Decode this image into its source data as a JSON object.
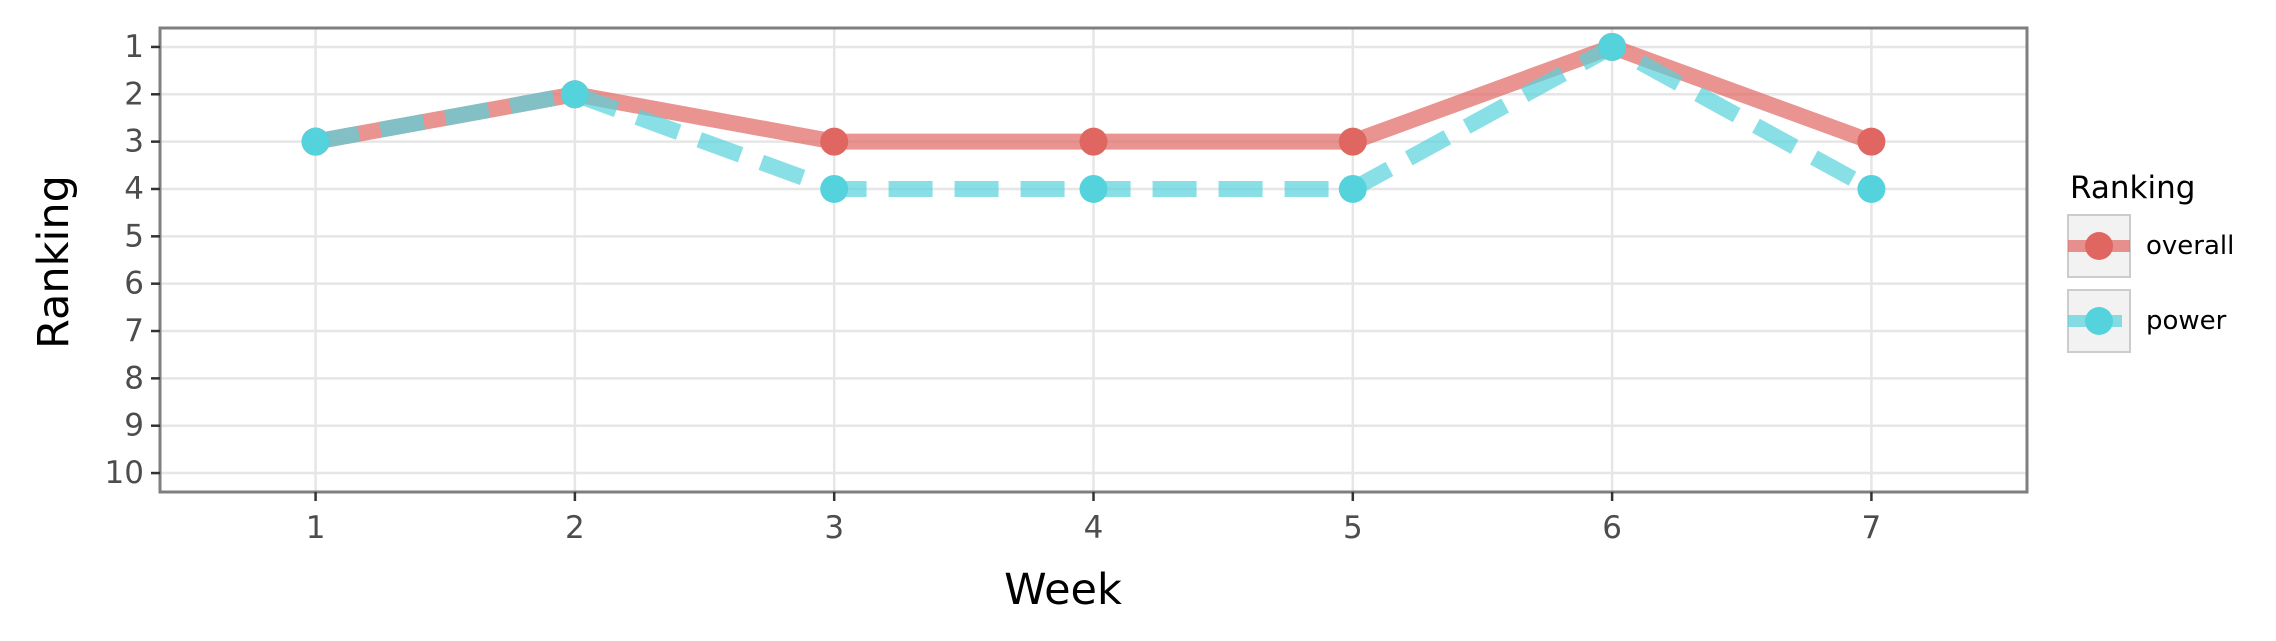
{
  "chart_data": {
    "type": "line",
    "title": "",
    "xlabel": "Week",
    "ylabel": "Ranking",
    "x": [
      1,
      2,
      3,
      4,
      5,
      6,
      7
    ],
    "xlim": [
      0.4,
      7.6
    ],
    "ylim": [
      10.4,
      0.6
    ],
    "y_reversed": true,
    "x_ticks": [
      "1",
      "2",
      "3",
      "4",
      "5",
      "6",
      "7"
    ],
    "y_ticks": [
      "1",
      "2",
      "3",
      "4",
      "5",
      "6",
      "7",
      "8",
      "9",
      "10"
    ],
    "grid": true,
    "legend": {
      "title": "Ranking",
      "position": "right"
    },
    "series": [
      {
        "name": "overall",
        "values": [
          3,
          2,
          3,
          3,
          3,
          1,
          3
        ],
        "color": "#e06661",
        "line_style": "solid"
      },
      {
        "name": "power",
        "values": [
          3,
          2,
          4,
          4,
          4,
          1,
          4
        ],
        "color": "#55d3dc",
        "line_style": "dashed"
      }
    ]
  }
}
